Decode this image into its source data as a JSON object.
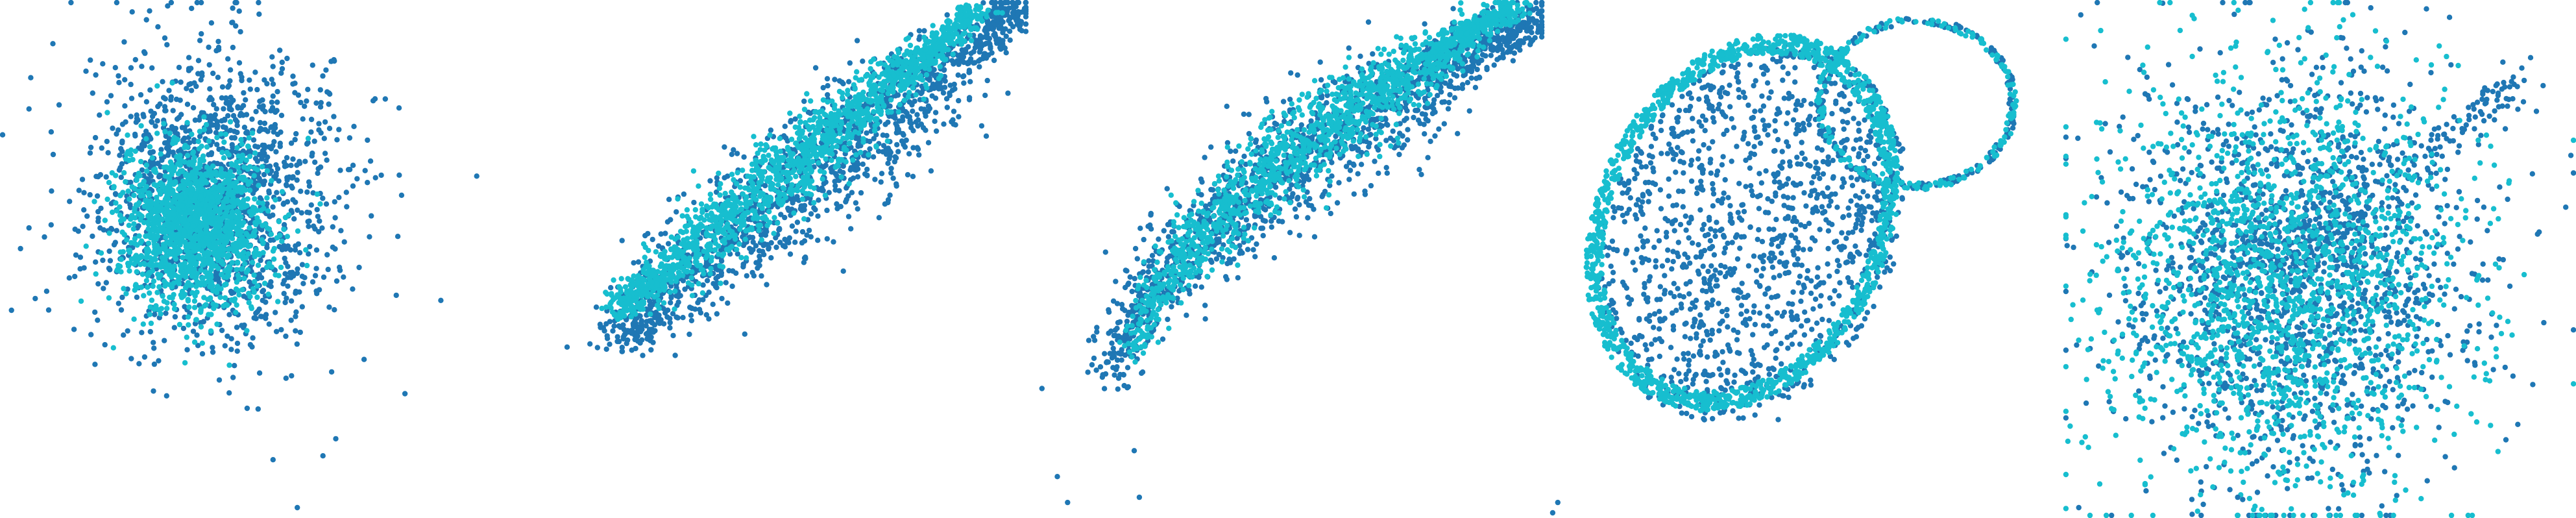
{
  "colors": {
    "background": "#ffffff",
    "dark_blue": "#1f77b4",
    "cyan": "#17becf"
  },
  "chart_data": [
    {
      "type": "scatter",
      "title": "",
      "xlabel": "",
      "ylabel": "",
      "grid": false,
      "legend": "none",
      "axes_visible": false,
      "xlim": [
        0,
        1
      ],
      "ylim": [
        0,
        1
      ],
      "point_count_estimate": 3000,
      "series": [
        {
          "color": "#1f77b4",
          "shape": "diffuse round cluster",
          "center": [
            0.42,
            0.62
          ],
          "spread": [
            0.12,
            0.14
          ]
        },
        {
          "color": "#17becf",
          "shape": "dense core, left of center",
          "center": [
            0.38,
            0.57
          ],
          "spread": [
            0.07,
            0.08
          ]
        }
      ],
      "outliers": [
        [
          0.06,
          0.85
        ],
        [
          0.04,
          0.52
        ],
        [
          0.93,
          0.66
        ],
        [
          0.86,
          0.42
        ],
        [
          0.63,
          0.12
        ],
        [
          0.58,
          0.02
        ],
        [
          0.79,
          0.24
        ]
      ]
    },
    {
      "type": "scatter",
      "title": "",
      "xlabel": "",
      "ylabel": "",
      "grid": false,
      "legend": "none",
      "axes_visible": false,
      "xlim": [
        0,
        1
      ],
      "ylim": [
        0,
        1
      ],
      "point_count_estimate": 3000,
      "series": [
        {
          "color": "#1f77b4",
          "shape": "diagonal band from lower-left to upper-right",
          "from": [
            0.2,
            0.35
          ],
          "to": [
            0.98,
            0.99
          ],
          "width": 0.1
        },
        {
          "color": "#17becf",
          "shape": "narrow diagonal band, upper side",
          "from": [
            0.2,
            0.4
          ],
          "to": [
            0.9,
            0.98
          ],
          "width": 0.06
        }
      ],
      "outliers": [
        [
          0.1,
          0.33
        ],
        [
          0.81,
          0.67
        ],
        [
          0.96,
          0.82
        ]
      ]
    },
    {
      "type": "scatter",
      "title": "",
      "xlabel": "",
      "ylabel": "",
      "grid": false,
      "legend": "none",
      "axes_visible": false,
      "xlim": [
        0,
        1
      ],
      "ylim": [
        0,
        1
      ],
      "point_count_estimate": 3000,
      "series": [
        {
          "color": "#1f77b4",
          "shape": "curved band rising and flattening to the upper right",
          "from": [
            0.15,
            0.25
          ],
          "to": [
            0.99,
            0.97
          ],
          "width": 0.09
        },
        {
          "color": "#17becf",
          "shape": "curved band, upper side",
          "from": [
            0.2,
            0.3
          ],
          "to": [
            0.95,
            0.99
          ],
          "width": 0.06
        }
      ],
      "outliers": [
        [
          0.02,
          0.25
        ],
        [
          0.05,
          0.08
        ],
        [
          0.2,
          0.13
        ],
        [
          0.07,
          0.03
        ],
        [
          0.21,
          0.04
        ]
      ]
    },
    {
      "type": "scatter",
      "title": "",
      "xlabel": "",
      "ylabel": "",
      "grid": false,
      "legend": "none",
      "axes_visible": false,
      "xlim": [
        0,
        1
      ],
      "ylim": [
        0,
        1
      ],
      "point_count_estimate": 3000,
      "series": [
        {
          "color": "#1f77b4",
          "shape": "tilted elliptical shell with secondary lobe upper right",
          "center": [
            0.4,
            0.55
          ],
          "spread": [
            0.28,
            0.38
          ]
        },
        {
          "color": "#17becf",
          "shape": "arc tracing the ellipse outline",
          "center": [
            0.38,
            0.57
          ],
          "spread": [
            0.3,
            0.4
          ]
        }
      ],
      "outliers": [
        [
          0.02,
          0.03
        ],
        [
          0.01,
          0.01
        ],
        [
          0.45,
          0.19
        ]
      ]
    },
    {
      "type": "scatter",
      "title": "",
      "xlabel": "",
      "ylabel": "",
      "grid": false,
      "legend": "none",
      "axes_visible": false,
      "xlim": [
        0,
        1
      ],
      "ylim": [
        0,
        1
      ],
      "point_count_estimate": 3500,
      "series": [
        {
          "color": "#1f77b4",
          "shape": "broad diffuse cloud with streaks toward upper right",
          "center": [
            0.45,
            0.48
          ],
          "spread": [
            0.17,
            0.2
          ]
        },
        {
          "color": "#17becf",
          "shape": "diffuse cloud, slightly sparser",
          "center": [
            0.43,
            0.46
          ],
          "spread": [
            0.18,
            0.2
          ]
        }
      ],
      "outliers": [
        [
          0.03,
          0.02
        ],
        [
          0.34,
          0.04
        ],
        [
          0.98,
          0.6
        ],
        [
          0.99,
          0.7
        ],
        [
          0.85,
          0.5
        ]
      ]
    }
  ]
}
